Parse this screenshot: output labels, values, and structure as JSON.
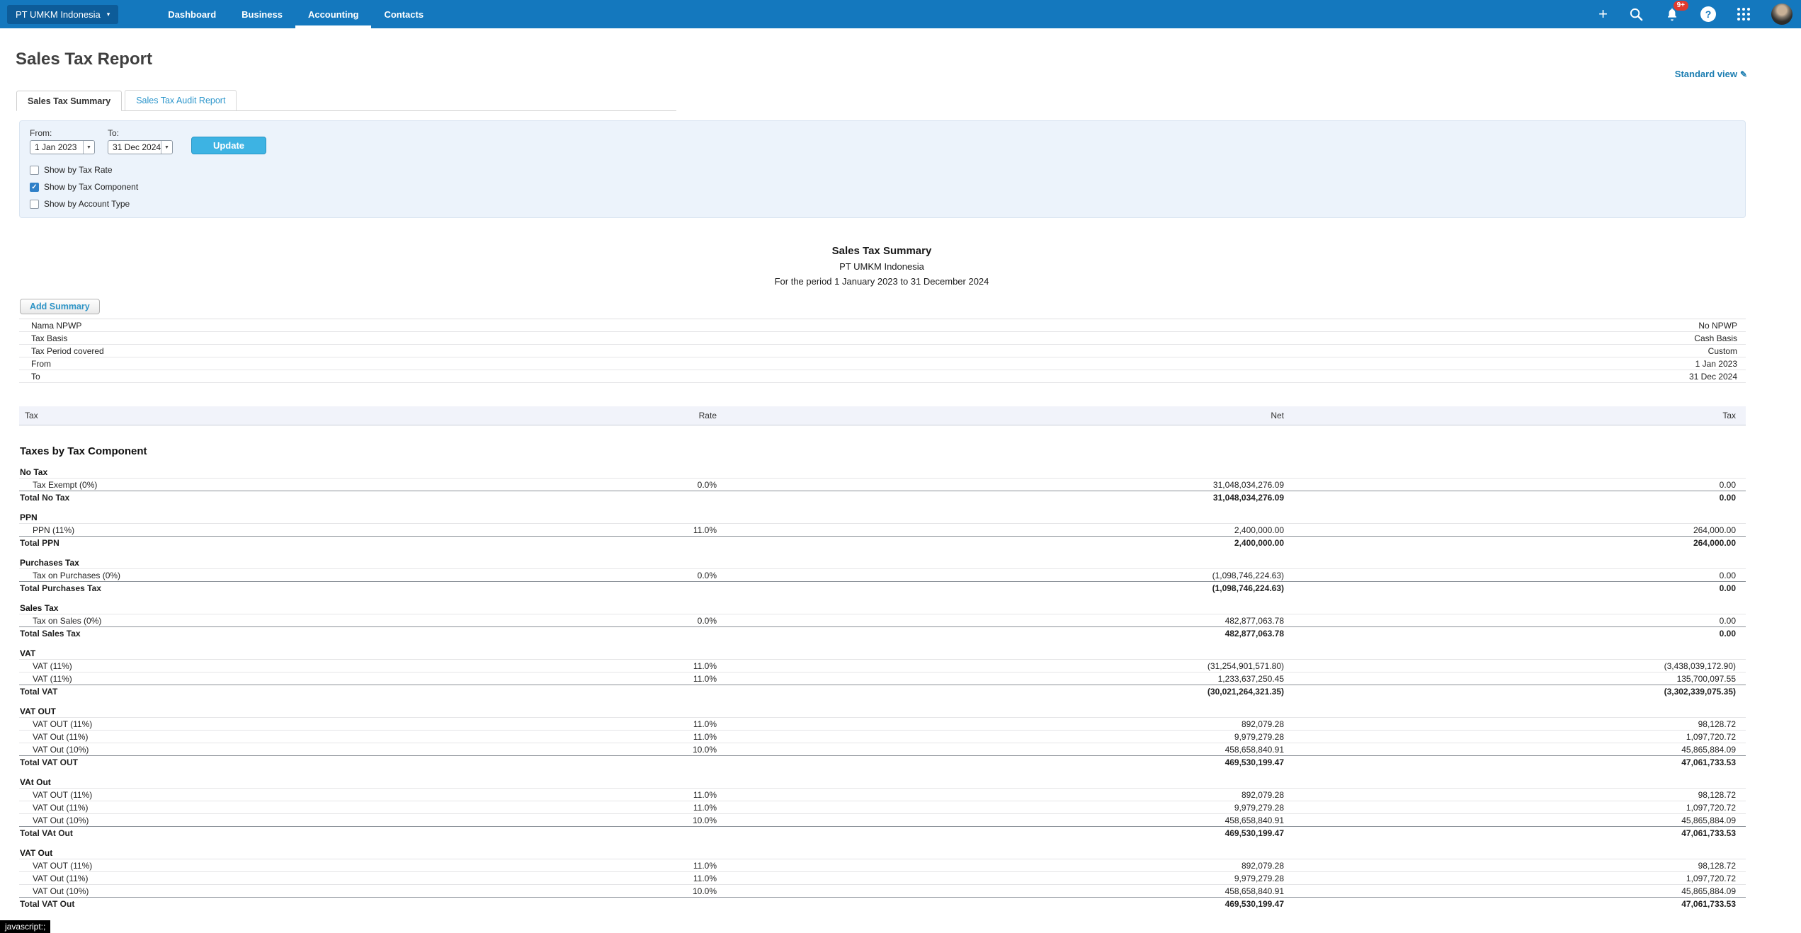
{
  "nav": {
    "org": "PT UMKM Indonesia",
    "items": [
      {
        "label": "Dashboard",
        "active": false
      },
      {
        "label": "Business",
        "active": false
      },
      {
        "label": "Accounting",
        "active": true
      },
      {
        "label": "Contacts",
        "active": false
      }
    ],
    "notification_count": "9+"
  },
  "page": {
    "title": "Sales Tax Report",
    "standard_view_label": "Standard view"
  },
  "tabs": [
    {
      "label": "Sales Tax Summary",
      "active": true
    },
    {
      "label": "Sales Tax Audit Report",
      "active": false
    }
  ],
  "filters": {
    "from_label": "From:",
    "from_value": "1 Jan 2023",
    "to_label": "To:",
    "to_value": "31 Dec 2024",
    "update_label": "Update",
    "checkboxes": [
      {
        "label": "Show by Tax Rate",
        "checked": false
      },
      {
        "label": "Show by Tax Component",
        "checked": true
      },
      {
        "label": "Show by Account Type",
        "checked": false
      }
    ]
  },
  "report": {
    "title": "Sales Tax Summary",
    "company": "PT UMKM Indonesia",
    "period": "For the period 1 January 2023 to 31 December 2024",
    "add_summary_label": "Add Summary",
    "summary_rows": [
      {
        "label": "Nama NPWP",
        "value": "No NPWP"
      },
      {
        "label": "Tax Basis",
        "value": "Cash Basis"
      },
      {
        "label": "Tax Period covered",
        "value": "Custom"
      },
      {
        "label": "From",
        "value": "1 Jan 2023"
      },
      {
        "label": "To",
        "value": "31 Dec 2024"
      }
    ],
    "columns": [
      "Tax",
      "Rate",
      "Net",
      "Tax"
    ],
    "section_title": "Taxes by Tax Component",
    "groups": [
      {
        "name": "No Tax",
        "rows": [
          [
            "Tax Exempt (0%)",
            "0.0%",
            "31,048,034,276.09",
            "0.00"
          ]
        ],
        "total": [
          "Total No Tax",
          "31,048,034,276.09",
          "0.00"
        ]
      },
      {
        "name": "PPN",
        "rows": [
          [
            "PPN (11%)",
            "11.0%",
            "2,400,000.00",
            "264,000.00"
          ]
        ],
        "total": [
          "Total PPN",
          "2,400,000.00",
          "264,000.00"
        ]
      },
      {
        "name": "Purchases Tax",
        "rows": [
          [
            "Tax on Purchases (0%)",
            "0.0%",
            "(1,098,746,224.63)",
            "0.00"
          ]
        ],
        "total": [
          "Total Purchases Tax",
          "(1,098,746,224.63)",
          "0.00"
        ]
      },
      {
        "name": "Sales Tax",
        "rows": [
          [
            "Tax on Sales (0%)",
            "0.0%",
            "482,877,063.78",
            "0.00"
          ]
        ],
        "total": [
          "Total Sales Tax",
          "482,877,063.78",
          "0.00"
        ]
      },
      {
        "name": "VAT",
        "rows": [
          [
            "VAT (11%)",
            "11.0%",
            "(31,254,901,571.80)",
            "(3,438,039,172.90)"
          ],
          [
            "VAT (11%)",
            "11.0%",
            "1,233,637,250.45",
            "135,700,097.55"
          ]
        ],
        "total": [
          "Total VAT",
          "(30,021,264,321.35)",
          "(3,302,339,075.35)"
        ]
      },
      {
        "name": "VAT OUT",
        "rows": [
          [
            "VAT OUT (11%)",
            "11.0%",
            "892,079.28",
            "98,128.72"
          ],
          [
            "VAT Out (11%)",
            "11.0%",
            "9,979,279.28",
            "1,097,720.72"
          ],
          [
            "VAT Out (10%)",
            "10.0%",
            "458,658,840.91",
            "45,865,884.09"
          ]
        ],
        "total": [
          "Total VAT OUT",
          "469,530,199.47",
          "47,061,733.53"
        ]
      },
      {
        "name": "VAt Out",
        "rows": [
          [
            "VAT OUT (11%)",
            "11.0%",
            "892,079.28",
            "98,128.72"
          ],
          [
            "VAT Out (11%)",
            "11.0%",
            "9,979,279.28",
            "1,097,720.72"
          ],
          [
            "VAT Out (10%)",
            "10.0%",
            "458,658,840.91",
            "45,865,884.09"
          ]
        ],
        "total": [
          "Total VAt Out",
          "469,530,199.47",
          "47,061,733.53"
        ]
      },
      {
        "name": "VAT Out",
        "rows": [
          [
            "VAT OUT (11%)",
            "11.0%",
            "892,079.28",
            "98,128.72"
          ],
          [
            "VAT Out (11%)",
            "11.0%",
            "9,979,279.28",
            "1,097,720.72"
          ],
          [
            "VAT Out (10%)",
            "10.0%",
            "458,658,840.91",
            "45,865,884.09"
          ]
        ],
        "total": [
          "Total VAT Out",
          "469,530,199.47",
          "47,061,733.53"
        ]
      }
    ]
  },
  "status_tooltip": "javascript:;",
  "colors": {
    "nav_blue": "#1478be",
    "org_box_blue": "#0d5c99",
    "link_blue": "#1b7db1",
    "tab_link_blue": "#2b95cb",
    "update_button": "#3db3e3",
    "badge_red": "#e03a2d",
    "checkbox_blue": "#2f80c8",
    "panel_bg": "#ecf3fb"
  }
}
